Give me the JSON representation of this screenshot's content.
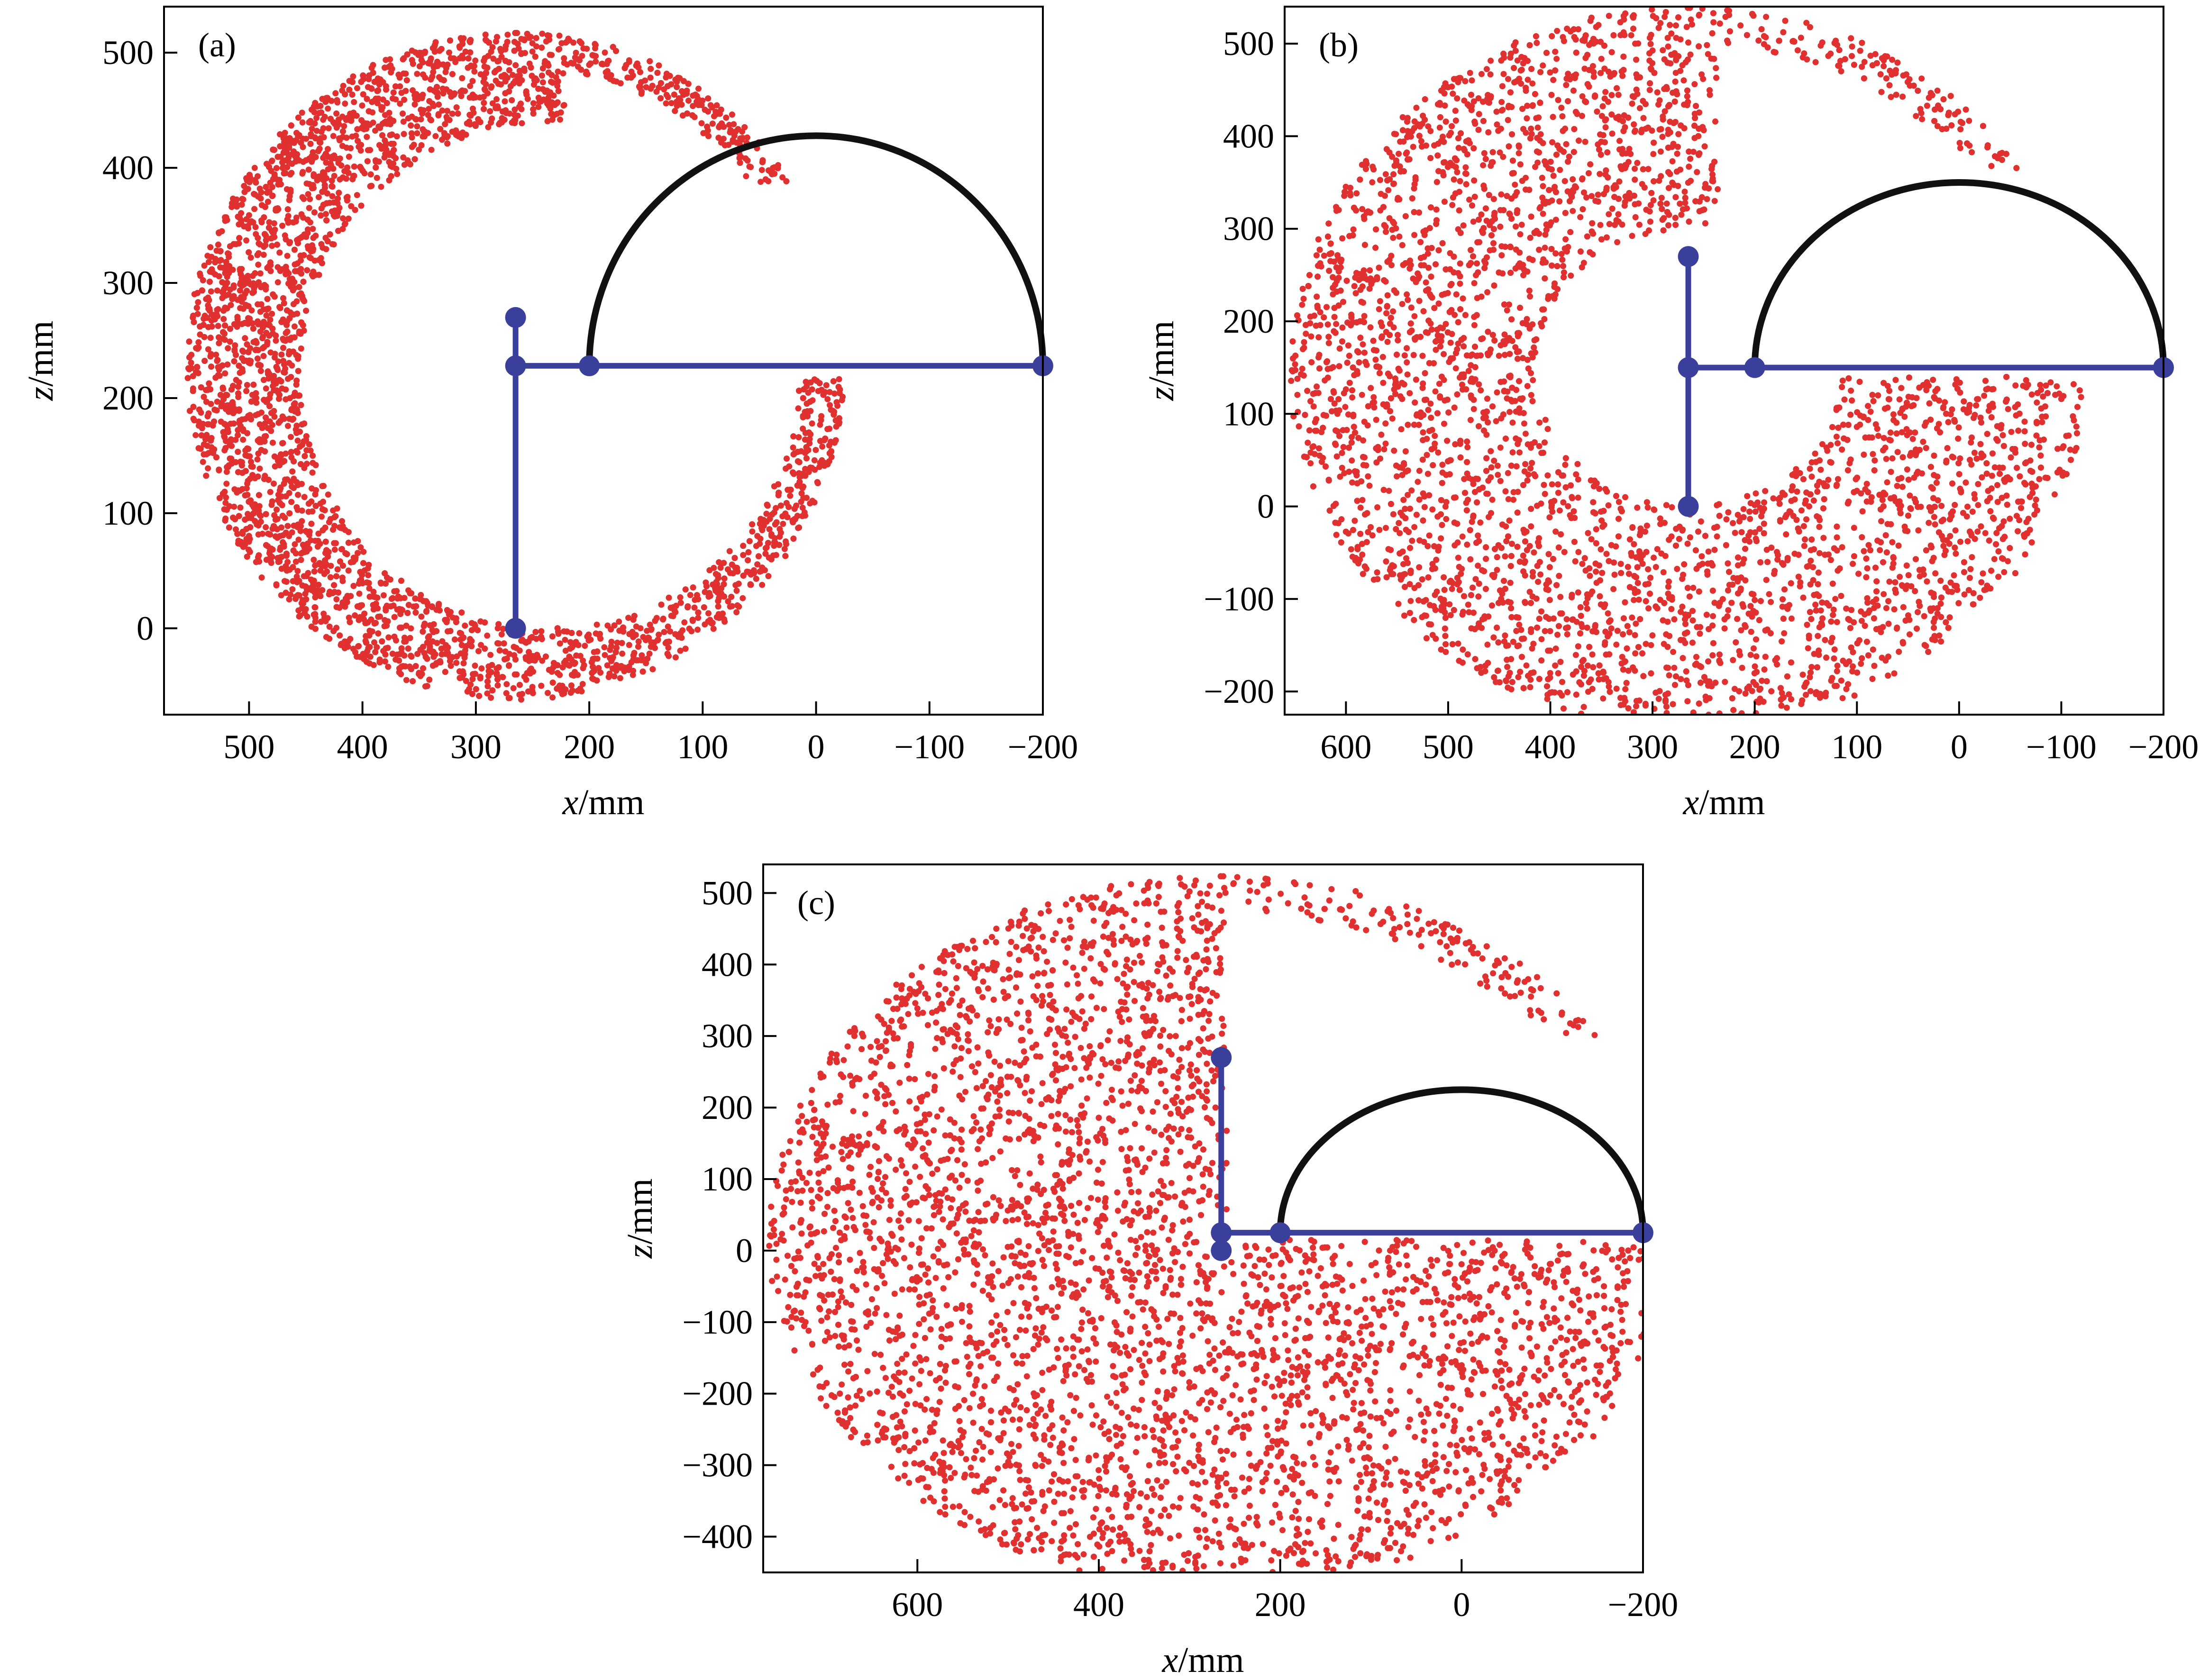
{
  "figure": {
    "type": "scatter",
    "colors": {
      "points": "#e03030",
      "arm": "#3a3f9c",
      "arc": "#111111",
      "frame": "#000000"
    }
  },
  "chart_data": [
    {
      "type": "scatter",
      "panel": "(a)",
      "xlabel_italic": "x",
      "xlabel_unit": "/mm",
      "ylabel_italic": "z",
      "ylabel_unit": "/mm",
      "xlim": [
        575,
        -200
      ],
      "ylim": [
        -75,
        540
      ],
      "x_reversed": true,
      "xticks": [
        500,
        400,
        300,
        200,
        100,
        0,
        -100,
        -200
      ],
      "xtick_labels": [
        "500",
        "400",
        "300",
        "200",
        "100",
        "0",
        "−100",
        "−200"
      ],
      "yticks": [
        0,
        100,
        200,
        300,
        400,
        500
      ],
      "ytick_labels": [
        "0",
        "100",
        "200",
        "300",
        "400",
        "500"
      ],
      "grid": false,
      "arm": {
        "base": [
          265,
          0
        ],
        "joint": [
          265,
          228
        ],
        "top": [
          265,
          270
        ],
        "tip_left": [
          200,
          228
        ],
        "tip_right": [
          -200,
          228
        ]
      },
      "arc": {
        "center": [
          0,
          228
        ],
        "radius": 200
      },
      "workspace": {
        "outer_center": [
          265,
          228
        ],
        "outer_radius": 290,
        "inner_center": [
          235,
          220
        ],
        "inner_radius": 220,
        "tail_start_deg": 95,
        "tail_end_deg": 150
      }
    },
    {
      "type": "scatter",
      "panel": "(b)",
      "xlabel_italic": "x",
      "xlabel_unit": "/mm",
      "ylabel_italic": "z",
      "ylabel_unit": "/mm",
      "xlim": [
        660,
        -200
      ],
      "ylim": [
        -225,
        540
      ],
      "x_reversed": true,
      "xticks": [
        600,
        500,
        400,
        300,
        200,
        100,
        0,
        -100,
        -200
      ],
      "xtick_labels": [
        "600",
        "500",
        "400",
        "300",
        "200",
        "100",
        "0",
        "−100",
        "−200"
      ],
      "yticks": [
        -200,
        -100,
        0,
        100,
        200,
        300,
        400,
        500
      ],
      "ytick_labels": [
        "−200",
        "−100",
        "0",
        "100",
        "200",
        "300",
        "400",
        "500"
      ],
      "grid": false,
      "arm": {
        "base": [
          265,
          0
        ],
        "joint": [
          265,
          150
        ],
        "top": [
          265,
          270
        ],
        "tip_left": [
          200,
          150
        ],
        "tip_right": [
          -200,
          150
        ]
      },
      "arc": {
        "center": [
          0,
          150
        ],
        "radius": 200
      },
      "workspace": {
        "outer_center": [
          265,
          150
        ],
        "outer_radius": 390,
        "inner_center": [
          265,
          150
        ],
        "inner_radius": 150,
        "tail_start_deg": 95,
        "tail_end_deg": 150
      }
    },
    {
      "type": "scatter",
      "panel": "(c)",
      "xlabel_italic": "x",
      "xlabel_unit": "/mm",
      "ylabel_italic": "z",
      "ylabel_unit": "/mm",
      "xlim": [
        770,
        -200
      ],
      "ylim": [
        -450,
        540
      ],
      "x_reversed": true,
      "xticks": [
        600,
        400,
        200,
        0,
        -200
      ],
      "xtick_labels": [
        "600",
        "400",
        "200",
        "0",
        "−200"
      ],
      "yticks": [
        -400,
        -300,
        -200,
        -100,
        0,
        100,
        200,
        300,
        400,
        500
      ],
      "ytick_labels": [
        "−400",
        "−300",
        "−200",
        "−100",
        "0",
        "100",
        "200",
        "300",
        "400",
        "500"
      ],
      "grid": false,
      "arm": {
        "base": [
          265,
          0
        ],
        "joint": [
          265,
          25
        ],
        "top": [
          265,
          270
        ],
        "tip_left": [
          200,
          25
        ],
        "tip_right": [
          -200,
          25
        ]
      },
      "arc": {
        "center": [
          0,
          25
        ],
        "radius": 200
      },
      "workspace": {
        "outer_center": [
          265,
          25
        ],
        "outer_radius": 500,
        "inner_center": [
          265,
          25
        ],
        "inner_radius": 30,
        "tail_start_deg": 95,
        "tail_end_deg": 150
      }
    }
  ]
}
